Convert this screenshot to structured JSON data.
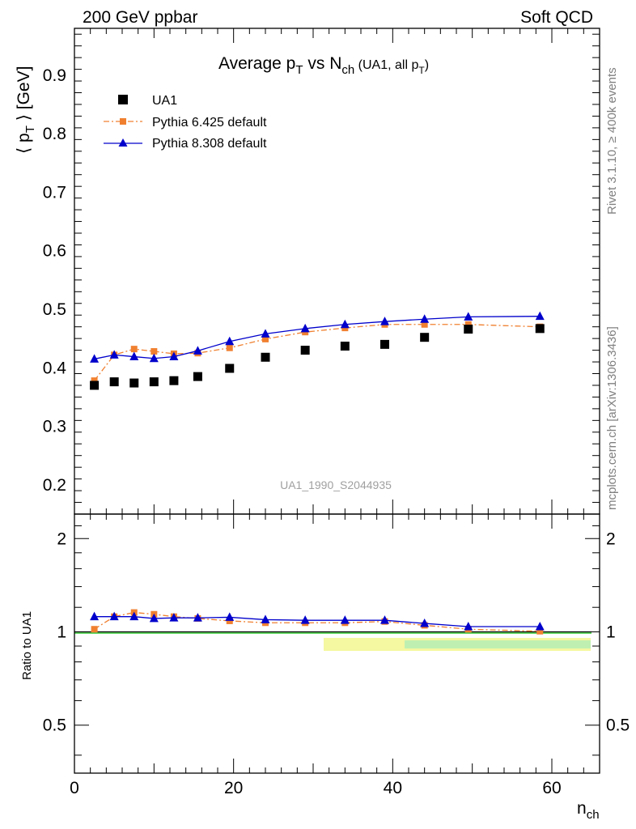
{
  "header": {
    "left": "200 GeV ppbar",
    "right": "Soft QCD"
  },
  "side_labels": {
    "top": "Rivet 3.1.10, ≥ 400k events",
    "bottom": "mcplots.cern.ch [arXiv:1306.3436]"
  },
  "watermark": "UA1_1990_S2044935",
  "chart_data": [
    {
      "type": "line",
      "title_parts": {
        "a": "Average p",
        "a_sub": "T",
        "b": " vs N",
        "b_sub": "ch",
        "c": " (UA1, all p",
        "c_sub": "T",
        "d": ")"
      },
      "ylabel_parts": {
        "open": "⟨ p",
        "sub": "T",
        "close": " ⟩ [GeV]"
      },
      "xlim": [
        0,
        66
      ],
      "ylim": [
        0.15,
        0.98
      ],
      "yticks": [
        0.2,
        0.3,
        0.4,
        0.5,
        0.6,
        0.7,
        0.8,
        0.9
      ],
      "ytick_labels": [
        "0.2",
        "0.3",
        "0.4",
        "0.5",
        "0.6",
        "0.7",
        "0.8",
        "0.9"
      ],
      "legend_position": "top-left",
      "series": [
        {
          "name": "UA1",
          "style": "markers",
          "marker": "square",
          "color": "#000000",
          "x": [
            2.5,
            5.0,
            7.5,
            10.0,
            12.5,
            15.5,
            19.5,
            24.0,
            29.0,
            34.0,
            39.0,
            44.0,
            49.5,
            58.5
          ],
          "y": [
            0.37,
            0.376,
            0.374,
            0.376,
            0.378,
            0.385,
            0.399,
            0.418,
            0.43,
            0.437,
            0.44,
            0.452,
            0.466,
            0.467
          ]
        },
        {
          "name": "Pythia 6.425 default",
          "style": "dashdot",
          "marker": "square-small",
          "color": "#f08030",
          "x": [
            2.5,
            5.0,
            7.5,
            10.0,
            12.5,
            15.5,
            19.5,
            24.0,
            29.0,
            34.0,
            39.0,
            44.0,
            49.5,
            58.5
          ],
          "y": [
            0.378,
            0.422,
            0.432,
            0.428,
            0.424,
            0.425,
            0.434,
            0.449,
            0.461,
            0.468,
            0.474,
            0.474,
            0.474,
            0.47
          ]
        },
        {
          "name": "Pythia 8.308 default",
          "style": "solid",
          "marker": "triangle",
          "color": "#0000cc",
          "x": [
            2.5,
            5.0,
            7.5,
            10.0,
            12.5,
            15.5,
            19.5,
            24.0,
            29.0,
            34.0,
            39.0,
            44.0,
            49.5,
            58.5
          ],
          "y": [
            0.415,
            0.422,
            0.419,
            0.416,
            0.419,
            0.429,
            0.445,
            0.458,
            0.467,
            0.474,
            0.479,
            0.483,
            0.487,
            0.488
          ]
        }
      ]
    },
    {
      "type": "line",
      "ylabel": "Ratio to UA1",
      "xlabel_parts": {
        "base": "n",
        "sub": "ch"
      },
      "xlim": [
        0,
        66
      ],
      "xticks": [
        0,
        20,
        40,
        60
      ],
      "xtick_labels": [
        "0",
        "20",
        "40",
        "60"
      ],
      "ylim": [
        0.35,
        2.4
      ],
      "scale": "log",
      "yticks": [
        0.5,
        1,
        2
      ],
      "ytick_labels": [
        "0.5",
        "1",
        "2"
      ],
      "reference_line": 1.0,
      "series": [
        {
          "name": "Pythia 6.425 default",
          "style": "dashdot",
          "marker": "square-small",
          "color": "#f08030",
          "x": [
            2.5,
            5.0,
            7.5,
            10.0,
            12.5,
            15.5,
            19.5,
            24.0,
            29.0,
            34.0,
            39.0,
            44.0,
            49.5,
            58.5
          ],
          "y": [
            1.02,
            1.12,
            1.155,
            1.14,
            1.12,
            1.105,
            1.085,
            1.07,
            1.07,
            1.07,
            1.08,
            1.05,
            1.02,
            1.005
          ]
        },
        {
          "name": "Pythia 8.308 default",
          "style": "solid",
          "marker": "triangle",
          "color": "#0000cc",
          "x": [
            2.5,
            5.0,
            7.5,
            10.0,
            12.5,
            15.5,
            19.5,
            24.0,
            29.0,
            34.0,
            39.0,
            44.0,
            49.5,
            58.5
          ],
          "y": [
            1.12,
            1.12,
            1.12,
            1.105,
            1.11,
            1.11,
            1.115,
            1.095,
            1.09,
            1.09,
            1.09,
            1.065,
            1.04,
            1.04
          ]
        }
      ]
    }
  ]
}
